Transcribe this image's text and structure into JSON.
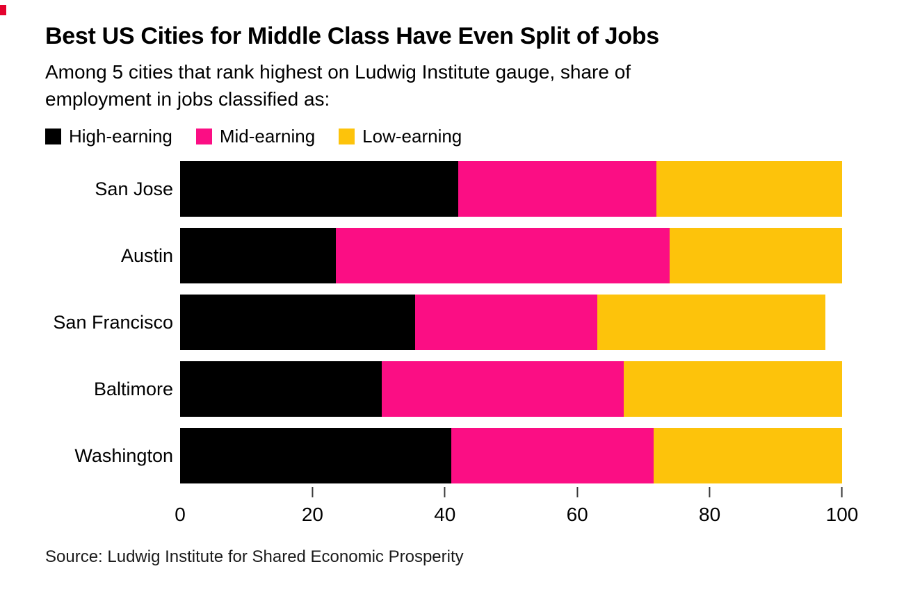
{
  "header": {
    "title": "Best US Cities for Middle Class Have Even Split of Jobs",
    "subtitle_line1": "Among 5 cities that rank highest on Ludwig Institute gauge, share of",
    "subtitle_line2": "employment in jobs classified as:"
  },
  "decorations": {
    "corner_mark_color": "#e4032e"
  },
  "chart_data": {
    "type": "bar",
    "orientation": "horizontal",
    "stacked": true,
    "title": "Best US Cities for Middle Class Have Even Split of Jobs",
    "subtitle": "Among 5 cities that rank highest on Ludwig Institute gauge, share of employment in jobs classified as:",
    "categories": [
      "San Jose",
      "Austin",
      "San Francisco",
      "Baltimore",
      "Washington"
    ],
    "series": [
      {
        "name": "High-earning",
        "color": "#000000",
        "values": [
          42,
          23.5,
          35.5,
          30.5,
          41
        ]
      },
      {
        "name": "Mid-earning",
        "color": "#fb0e84",
        "values": [
          30,
          50.5,
          27.5,
          36.5,
          30.5
        ]
      },
      {
        "name": "Low-earning",
        "color": "#fdc30b",
        "values": [
          28,
          26,
          34.5,
          33,
          28.5
        ]
      }
    ],
    "xlabel": "",
    "ylabel": "",
    "xlim": [
      0,
      100
    ],
    "xticks": [
      0,
      20,
      40,
      60,
      80,
      100
    ],
    "grid": false,
    "legend_position": "top",
    "source": "Source: Ludwig Institute for Shared Economic Prosperity"
  }
}
